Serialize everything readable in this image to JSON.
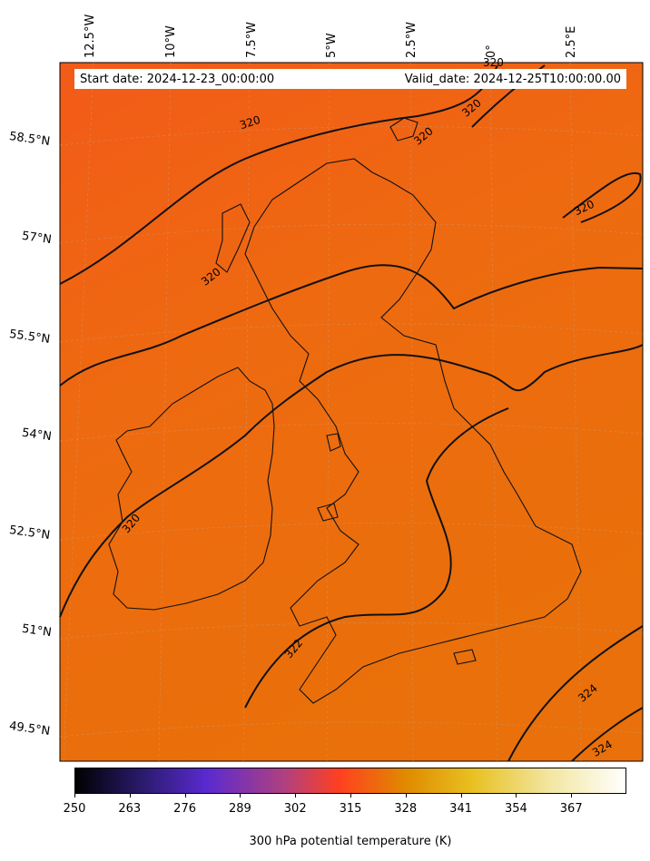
{
  "map": {
    "start_date": "Start date: 2024-12-23_00:00:00",
    "valid_date": "Valid_date: 2024-12-25T10:00:00.00",
    "lon_labels": [
      "12.5°W",
      "10°W",
      "7.5°W",
      "5°W",
      "2.5°W",
      "0°",
      "2.5°E"
    ],
    "lat_labels": [
      "58.5°N",
      "57°N",
      "55.5°N",
      "54°N",
      "52.5°N",
      "51°N",
      "49.5°N"
    ],
    "contour_labels": [
      "320",
      "320",
      "320",
      "320",
      "320",
      "320",
      "320",
      "322",
      "324",
      "324"
    ],
    "colorbar": {
      "label": "300 hPa potential temperature (K)",
      "ticks": [
        "250",
        "263",
        "276",
        "289",
        "302",
        "315",
        "328",
        "341",
        "354",
        "367"
      ],
      "min": 250,
      "max": 380,
      "colormap": "CMRmap",
      "stops": [
        "#000000",
        "#2a1a6a",
        "#5a2ad0",
        "#b04080",
        "#ff4020",
        "#e08a00",
        "#e8c020",
        "#f2e6a0",
        "#ffffff"
      ]
    }
  }
}
